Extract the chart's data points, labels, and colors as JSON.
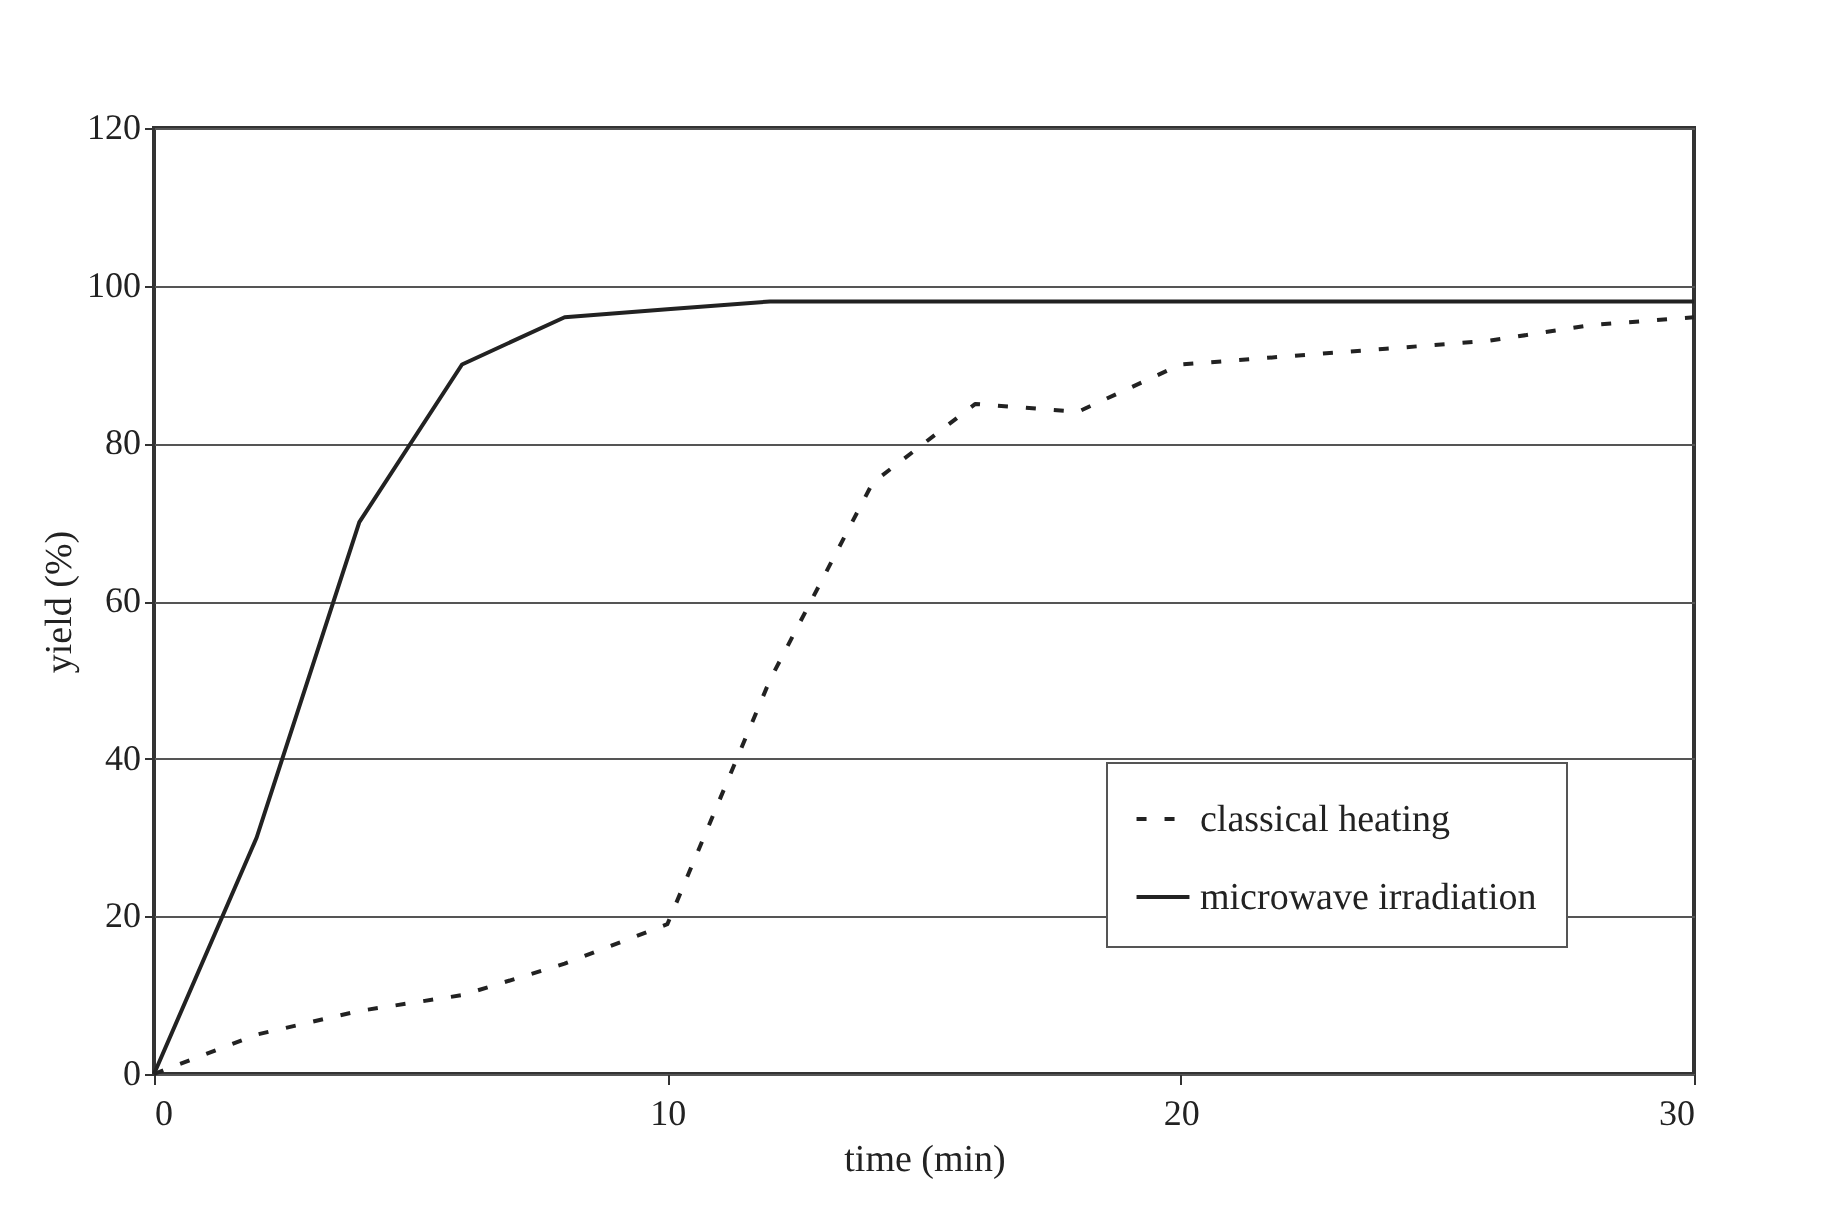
{
  "chart_data": {
    "type": "line",
    "xlabel": "time (min)",
    "ylabel": "yield (%)",
    "xlim": [
      0,
      30
    ],
    "xticks": [
      0,
      10,
      20,
      30
    ],
    "ylim": [
      0,
      120
    ],
    "yticks": [
      0,
      20,
      40,
      60,
      80,
      100,
      120
    ],
    "grid": "y",
    "legend": "bottom right",
    "marker": "none",
    "series": [
      {
        "name": "classical heating",
        "color": "#222222",
        "line_style": "dashed",
        "x": [
          0,
          2,
          4,
          6,
          8,
          10,
          12,
          14,
          16,
          18,
          20,
          22,
          24,
          26,
          28,
          30
        ],
        "values": [
          0,
          5,
          8,
          10,
          14,
          19,
          50,
          75,
          85,
          84,
          90,
          91,
          92,
          93,
          95,
          96
        ]
      },
      {
        "name": "microwave irradiation",
        "color": "#222222",
        "line_style": "solid",
        "x": [
          0,
          2,
          4,
          6,
          8,
          10,
          12,
          14,
          16,
          18,
          20,
          22,
          24,
          26,
          28,
          30
        ],
        "values": [
          0,
          30,
          70,
          90,
          96,
          97,
          98,
          98,
          98,
          98,
          98,
          98,
          98,
          98,
          98,
          98
        ]
      }
    ]
  }
}
